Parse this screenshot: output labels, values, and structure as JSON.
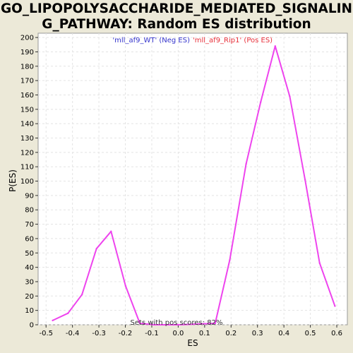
{
  "chart_data": {
    "type": "line",
    "title_line1": "GO_LIPOPOLYSACCHARIDE_MEDIATED_SIGNALIN",
    "title_line2": "G_PATHWAY: Random ES distribution",
    "xlabel": "ES",
    "ylabel": "P(ES)",
    "xlim": [
      -0.53,
      0.64
    ],
    "ylim": [
      0,
      203
    ],
    "x_ticks": [
      -0.5,
      -0.4,
      -0.3,
      -0.2,
      -0.1,
      0.0,
      0.1,
      0.2,
      0.3,
      0.4,
      0.5,
      0.6
    ],
    "x_tick_labels": [
      "-0.5",
      "-0.4",
      "-0.3",
      "-0.2",
      "-0.1",
      "0.0",
      "0.1",
      "0.2",
      "0.3",
      "0.4",
      "0.5",
      "0.6"
    ],
    "y_ticks": [
      0,
      10,
      20,
      30,
      40,
      50,
      60,
      70,
      80,
      90,
      100,
      110,
      120,
      130,
      140,
      150,
      160,
      170,
      180,
      190,
      200
    ],
    "y_tick_labels": [
      "0",
      "10",
      "20",
      "30",
      "40",
      "50",
      "60",
      "70",
      "80",
      "90",
      "100",
      "110",
      "120",
      "130",
      "140",
      "150",
      "160",
      "170",
      "180",
      "190",
      "200"
    ],
    "grid": true,
    "legend": [
      {
        "label": "'mll_af9_WT' (Neg ES)",
        "color": "#3333CC"
      },
      {
        "label": "'mll_af9_Rip1' (Pos ES)",
        "color": "#E8303A"
      }
    ],
    "annotation": "Sets with pos scores: 82%",
    "series": [
      {
        "color": "#EE44EE",
        "x": [
          -0.475,
          -0.417,
          -0.364,
          -0.309,
          -0.254,
          -0.199,
          -0.145,
          -0.09,
          0.0,
          0.14,
          0.195,
          0.257,
          0.312,
          0.367,
          0.422,
          0.48,
          0.535,
          0.593
        ],
        "y": [
          3,
          8,
          21,
          53,
          65,
          27,
          1,
          0,
          0,
          1,
          45,
          112,
          155,
          194,
          159,
          101,
          43,
          13
        ]
      }
    ]
  }
}
